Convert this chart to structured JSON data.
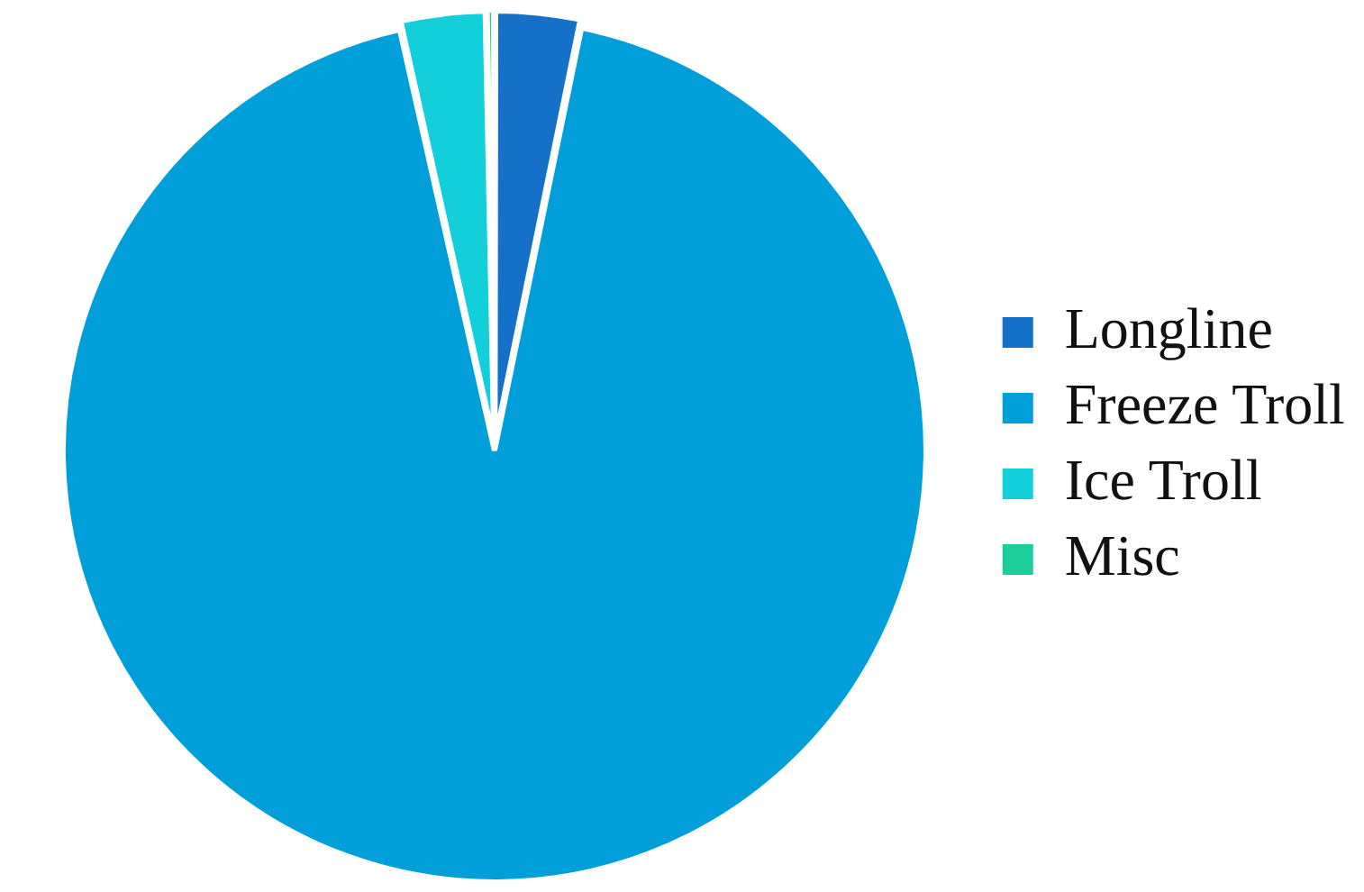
{
  "chart_data": {
    "type": "pie",
    "categories": [
      "Longline",
      "Freeze Troll",
      "Ice Troll",
      "Misc"
    ],
    "values": [
      3.2,
      93.3,
      3.2,
      0.3
    ],
    "colors": [
      "#1570c8",
      "#009fd9",
      "#12cfda",
      "#1ccf9a"
    ],
    "legend": "right"
  }
}
